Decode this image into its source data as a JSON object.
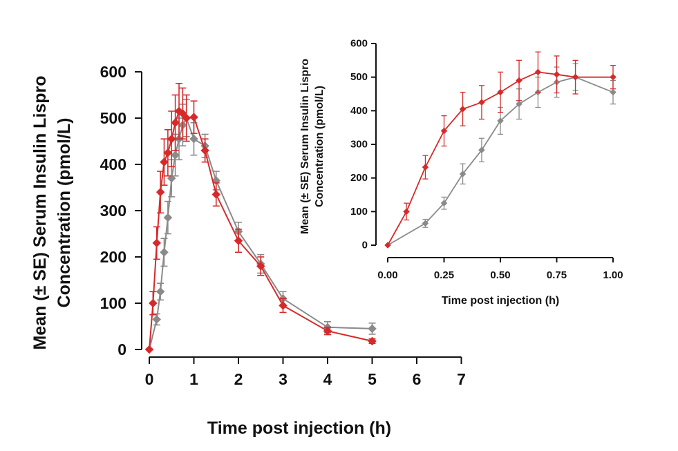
{
  "chart_data": [
    {
      "type": "line",
      "xlabel": "Time post injection (h)",
      "ylabel_line1": "Mean (± SE) Serum Insulin Lispro",
      "ylabel_line2": "Concentration (pmol/L)",
      "xlim": [
        0,
        7
      ],
      "ylim": [
        0,
        600
      ],
      "x_ticks": [
        0,
        1,
        2,
        3,
        4,
        5,
        6,
        7
      ],
      "y_ticks": [
        0,
        100,
        200,
        300,
        400,
        500,
        600
      ],
      "x_tick_labels": [
        "0",
        "1",
        "2",
        "3",
        "4",
        "5",
        "6",
        "7"
      ],
      "y_tick_labels": [
        "0",
        "100",
        "200",
        "300",
        "400",
        "500",
        "600"
      ],
      "grid": false,
      "legend": "none",
      "series": [
        {
          "color": "#d62a2a",
          "marker": "diamond",
          "x": [
            0,
            0.083,
            0.167,
            0.25,
            0.333,
            0.417,
            0.5,
            0.583,
            0.667,
            0.75,
            0.833,
            1,
            1.25,
            1.5,
            2,
            2.5,
            3,
            4,
            5
          ],
          "y": [
            0,
            100,
            230,
            340,
            405,
            425,
            455,
            490,
            515,
            510,
            500,
            502,
            430,
            335,
            235,
            180,
            95,
            40,
            18
          ],
          "se": [
            0,
            25,
            35,
            45,
            50,
            50,
            60,
            60,
            60,
            55,
            50,
            35,
            25,
            25,
            25,
            20,
            15,
            8,
            5
          ]
        },
        {
          "color": "#8a8a8a",
          "marker": "diamond",
          "x": [
            0,
            0.167,
            0.25,
            0.333,
            0.417,
            0.5,
            0.583,
            0.667,
            0.75,
            0.833,
            1,
            1.25,
            1.5,
            2,
            2.5,
            3,
            4,
            5
          ],
          "y": [
            0,
            65,
            125,
            210,
            285,
            370,
            420,
            455,
            485,
            500,
            455,
            440,
            365,
            255,
            185,
            110,
            48,
            45
          ],
          "se": [
            0,
            12,
            18,
            30,
            35,
            40,
            45,
            45,
            45,
            40,
            35,
            25,
            20,
            20,
            20,
            15,
            12,
            12
          ]
        }
      ]
    },
    {
      "type": "line",
      "xlabel": "Time post injection (h)",
      "ylabel_line1": "Mean (± SE) Serum Insulin Lispro",
      "ylabel_line2": "Concentration (pmol/L)",
      "xlim": [
        0,
        1
      ],
      "ylim": [
        0,
        600
      ],
      "x_ticks": [
        0,
        0.25,
        0.5,
        0.75,
        1
      ],
      "y_ticks": [
        0,
        100,
        200,
        300,
        400,
        500,
        600
      ],
      "x_tick_labels": [
        "0.00",
        "0.25",
        "0.50",
        "0.75",
        "1.00"
      ],
      "y_tick_labels": [
        "0",
        "100",
        "200",
        "300",
        "400",
        "500",
        "600"
      ],
      "grid": false,
      "legend": "none",
      "series": [
        {
          "color": "#d62a2a",
          "marker": "diamond",
          "x": [
            0,
            0.083,
            0.167,
            0.25,
            0.333,
            0.417,
            0.5,
            0.583,
            0.667,
            0.75,
            0.833,
            1
          ],
          "y": [
            0,
            100,
            232,
            340,
            405,
            425,
            455,
            490,
            515,
            508,
            500,
            500
          ],
          "se": [
            0,
            25,
            35,
            45,
            50,
            50,
            60,
            60,
            60,
            55,
            50,
            35
          ]
        },
        {
          "color": "#8a8a8a",
          "marker": "diamond",
          "x": [
            0,
            0.167,
            0.25,
            0.333,
            0.417,
            0.5,
            0.583,
            0.667,
            0.75,
            0.833,
            1
          ],
          "y": [
            0,
            65,
            125,
            212,
            283,
            370,
            420,
            455,
            485,
            500,
            455
          ],
          "se": [
            0,
            12,
            18,
            30,
            35,
            40,
            45,
            45,
            45,
            40,
            35
          ]
        }
      ]
    }
  ]
}
